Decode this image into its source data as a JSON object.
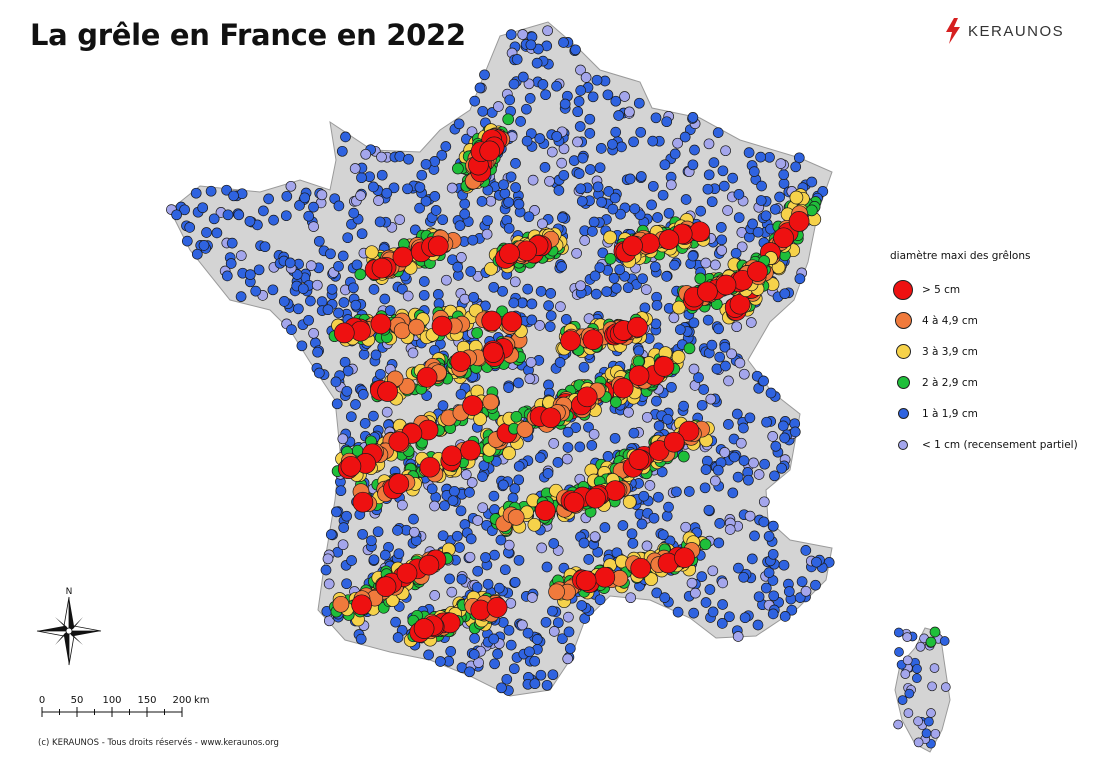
{
  "title": "La grêle en France en 2022",
  "brand": {
    "name": "KERAUNOS",
    "logo_icon": "lightning-bolt-icon",
    "logo_color": "#d62020"
  },
  "legend": {
    "title": "diamètre maxi des grêlons",
    "items": [
      {
        "label": "> 5 cm",
        "color": "#ee1111",
        "size": 18
      },
      {
        "label": "4 à 4,9 cm",
        "color": "#f07a3c",
        "size": 15
      },
      {
        "label": "3 à 3,9 cm",
        "color": "#f6d24a",
        "size": 13
      },
      {
        "label": "2 à 2,9 cm",
        "color": "#1fbf3a",
        "size": 11
      },
      {
        "label": "1 à 1,9 cm",
        "color": "#2f63e0",
        "size": 9
      },
      {
        "label": "< 1 cm (recensement partiel)",
        "color": "#a4a6ec",
        "size": 8
      }
    ]
  },
  "north_arrow": {
    "label": "N",
    "icon": "compass-rose-icon"
  },
  "scale_bar": {
    "ticks": [
      "0",
      "50",
      "100",
      "150",
      "200"
    ],
    "unit": "km"
  },
  "copyright": "(c) KERAUNOS - Tous droits réservés - www.keraunos.org",
  "colors": {
    "land": "#d4d4d4",
    "land_stroke": "#9a9a9a"
  }
}
